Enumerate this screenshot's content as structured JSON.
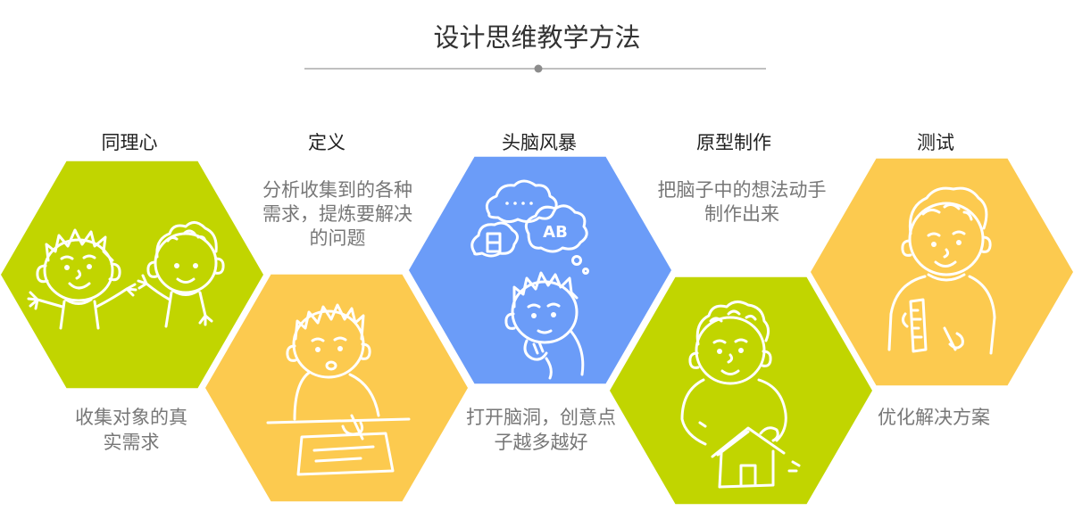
{
  "title": "设计思维教学方法",
  "colors": {
    "divider": "#ababab",
    "divider_dot": "#8c8c8c"
  },
  "steps": [
    {
      "title": "同理心",
      "color": "#c1d500",
      "illustration": "two-children-greeting-illustration",
      "description_lines": [
        "收集对象的真",
        "实需求"
      ]
    },
    {
      "title": "定义",
      "color": "#fcca4f",
      "illustration": "child-drawing-at-desk-illustration",
      "description_lines": [
        "分析收集到的各种",
        "需求，提炼要解决",
        "的问题"
      ]
    },
    {
      "title": "头脑风暴",
      "color": "#6b9cf8",
      "illustration": "child-thinking-with-clouds-illustration",
      "bubble_text": "AB",
      "description_lines": [
        "打开脑洞，创意点",
        "子越多越好"
      ]
    },
    {
      "title": "原型制作",
      "color": "#c1d500",
      "illustration": "child-building-house-illustration",
      "description_lines": [
        "把脑子中的想法动手",
        "制作出来"
      ]
    },
    {
      "title": "测试",
      "color": "#fcca4f",
      "illustration": "child-measuring-with-ruler-illustration",
      "description_lines": [
        "优化解决方案"
      ]
    }
  ]
}
